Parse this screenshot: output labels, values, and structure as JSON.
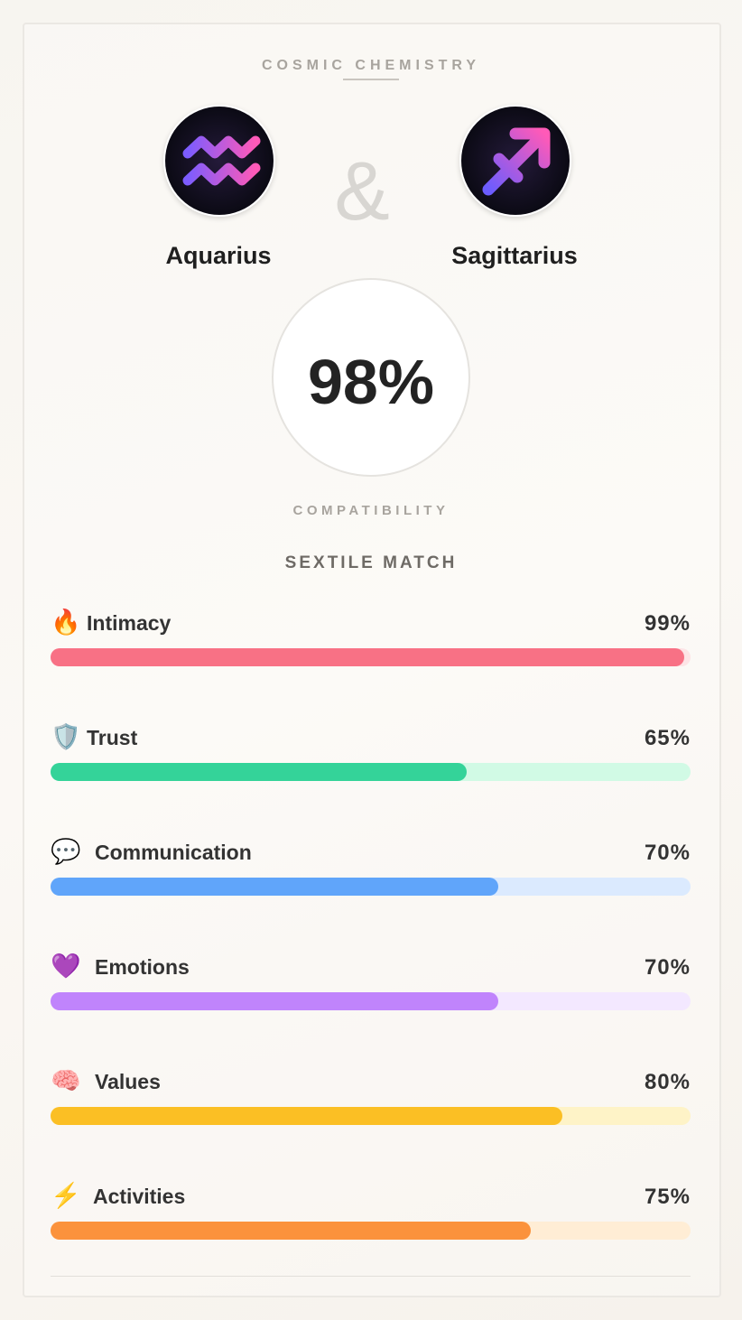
{
  "header": {
    "title": "COSMIC CHEMISTRY"
  },
  "signs": [
    {
      "name": "Aquarius"
    },
    {
      "name": "Sagittarius"
    }
  ],
  "connector": "&",
  "score": {
    "value": 98,
    "label": "98%",
    "caption": "COMPATIBILITY"
  },
  "match": "SEXTILE MATCH",
  "metrics": [
    {
      "icon": "🔥",
      "name": "Intimacy",
      "value": 99,
      "value_label": "99%",
      "color": "#f87185",
      "track": "#fde4e6"
    },
    {
      "icon": "🛡️",
      "name": "Trust",
      "value": 65,
      "value_label": "65%",
      "color": "#34d399",
      "track": "#d1fae5"
    },
    {
      "icon": "💬",
      "name": "Communication",
      "value": 70,
      "value_label": "70%",
      "color": "#60a5fa",
      "track": "#dbeafe"
    },
    {
      "icon": "💜",
      "name": "Emotions",
      "value": 70,
      "value_label": "70%",
      "color": "#c084fc",
      "track": "#f3e8ff"
    },
    {
      "icon": "🧠",
      "name": "Values",
      "value": 80,
      "value_label": "80%",
      "color": "#fbbf24",
      "track": "#fef3c7"
    },
    {
      "icon": "⚡",
      "name": "Activities",
      "value": 75,
      "value_label": "75%",
      "color": "#fb923c",
      "track": "#ffedd5"
    }
  ]
}
